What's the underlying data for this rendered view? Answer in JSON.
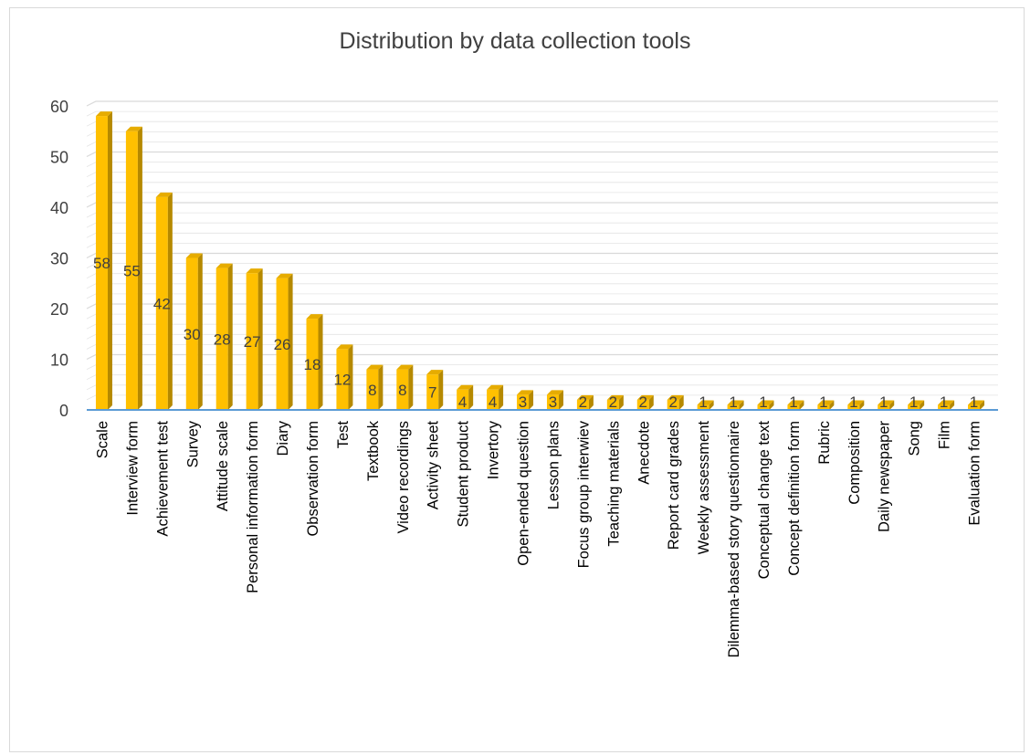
{
  "chart_data": {
    "type": "bar",
    "title": "Distribution by data collection tools",
    "xlabel": "",
    "ylabel": "",
    "ylim": [
      0,
      60
    ],
    "yticks": [
      0,
      10,
      20,
      30,
      40,
      50,
      60
    ],
    "grid": true,
    "legend": "none",
    "categories": [
      "Scale",
      "Interview form",
      "Achievement test",
      "Survey",
      "Attitude scale",
      "Personal information form",
      "Diary",
      "Observation form",
      "Test",
      "Textbook",
      "Video recordings",
      "Activity sheet",
      "Student product",
      "Invertory",
      "Open-ended question",
      "Lesson plans",
      "Focus group interwiev",
      "Teaching materials",
      "Anecdote",
      "Report card grades",
      "Weekly assessment",
      "Dilemma-based story questionnaire",
      "Conceptual change text",
      "Concept definition form",
      "Rubric",
      "Composition",
      "Daily newspaper",
      "Song",
      "Film",
      "Evaluation form"
    ],
    "values": [
      58,
      55,
      42,
      30,
      28,
      27,
      26,
      18,
      12,
      8,
      8,
      7,
      4,
      4,
      3,
      3,
      2,
      2,
      2,
      2,
      1,
      1,
      1,
      1,
      1,
      1,
      1,
      1,
      1,
      1
    ],
    "colors": {
      "bar_front": "#FFC000",
      "bar_side": "#B58900",
      "bar_top": "#E6AC00",
      "gridline": "#d9d9d9",
      "baseline": "#5B9BD5",
      "text": "#404040"
    }
  }
}
